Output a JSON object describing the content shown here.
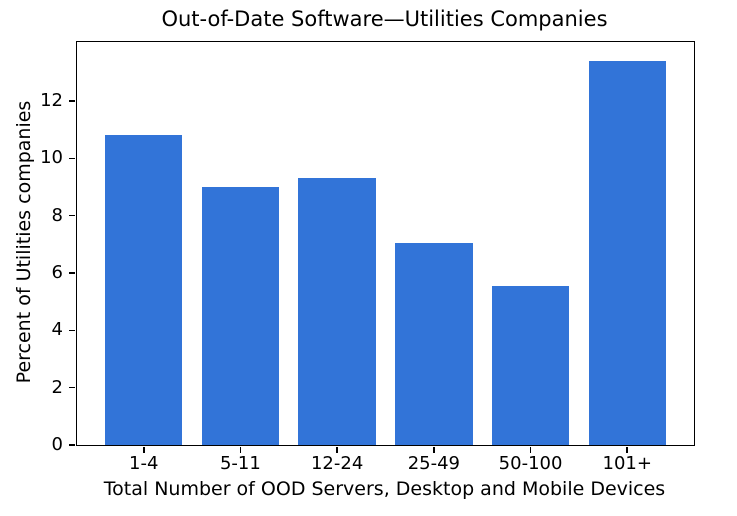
{
  "chart_data": {
    "type": "bar",
    "title": "Out-of-Date Software—Utilities Companies",
    "xlabel": "Total Number of OOD Servers, Desktop and Mobile Devices",
    "ylabel": "Percent of Utilities companies",
    "categories": [
      "1-4",
      "5-11",
      "12-24",
      "25-49",
      "50-100",
      "101+"
    ],
    "values": [
      10.8,
      9.0,
      9.3,
      7.05,
      5.55,
      13.4
    ],
    "yticks": [
      0,
      2,
      4,
      6,
      8,
      10,
      12
    ],
    "ylim": [
      0,
      14.06
    ],
    "xlim": [
      -0.69,
      5.69
    ],
    "bar_width": 0.8,
    "bar_color": "#3274d8",
    "axis_color": "#000000",
    "background_color": "#ffffff",
    "grid": false,
    "legend": null
  }
}
